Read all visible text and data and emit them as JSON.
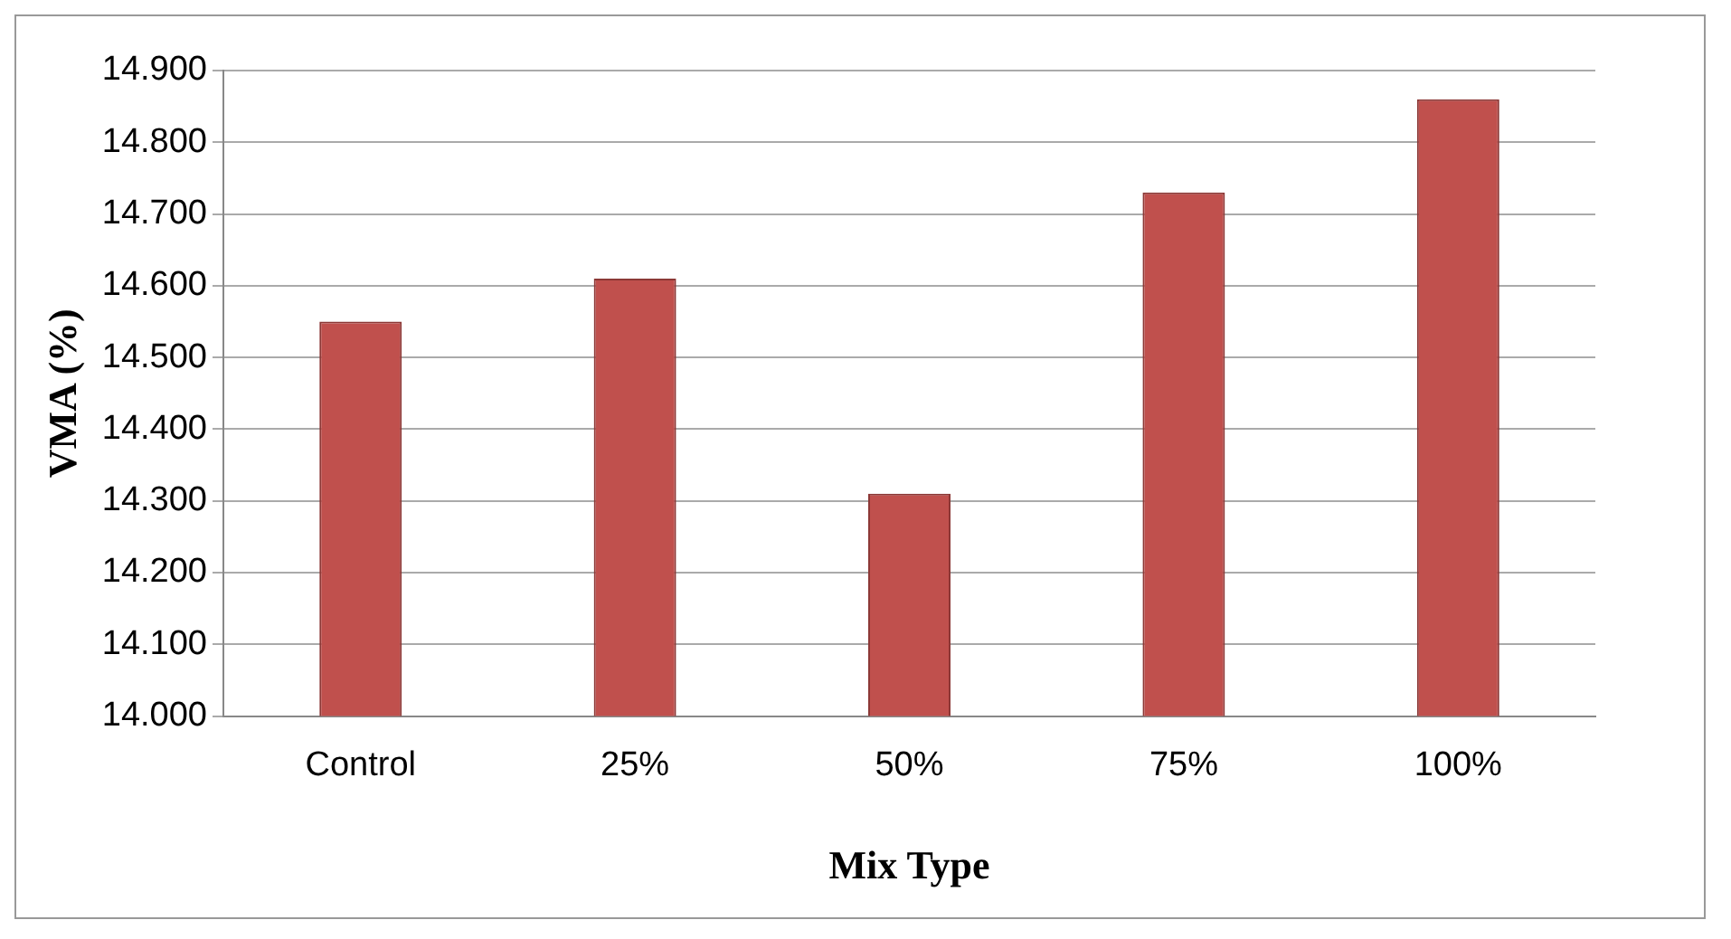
{
  "chart_data": {
    "type": "bar",
    "xlabel": "Mix Type",
    "ylabel": "VMA (%)",
    "categories": [
      "Control",
      "25%",
      "50%",
      "75%",
      "100%"
    ],
    "values": [
      14.55,
      14.61,
      14.31,
      14.73,
      14.86
    ],
    "color": "#c0504d",
    "ylim": [
      14.0,
      14.9
    ],
    "yticks": [
      {
        "value": 14.0,
        "label": "14.000"
      },
      {
        "value": 14.1,
        "label": "14.100"
      },
      {
        "value": 14.2,
        "label": "14.200"
      },
      {
        "value": 14.3,
        "label": "14.300"
      },
      {
        "value": 14.4,
        "label": "14.400"
      },
      {
        "value": 14.5,
        "label": "14.500"
      },
      {
        "value": 14.6,
        "label": "14.600"
      },
      {
        "value": 14.7,
        "label": "14.700"
      },
      {
        "value": 14.8,
        "label": "14.800"
      },
      {
        "value": 14.9,
        "label": "14.900"
      }
    ],
    "grid": "y",
    "legend": false
  }
}
